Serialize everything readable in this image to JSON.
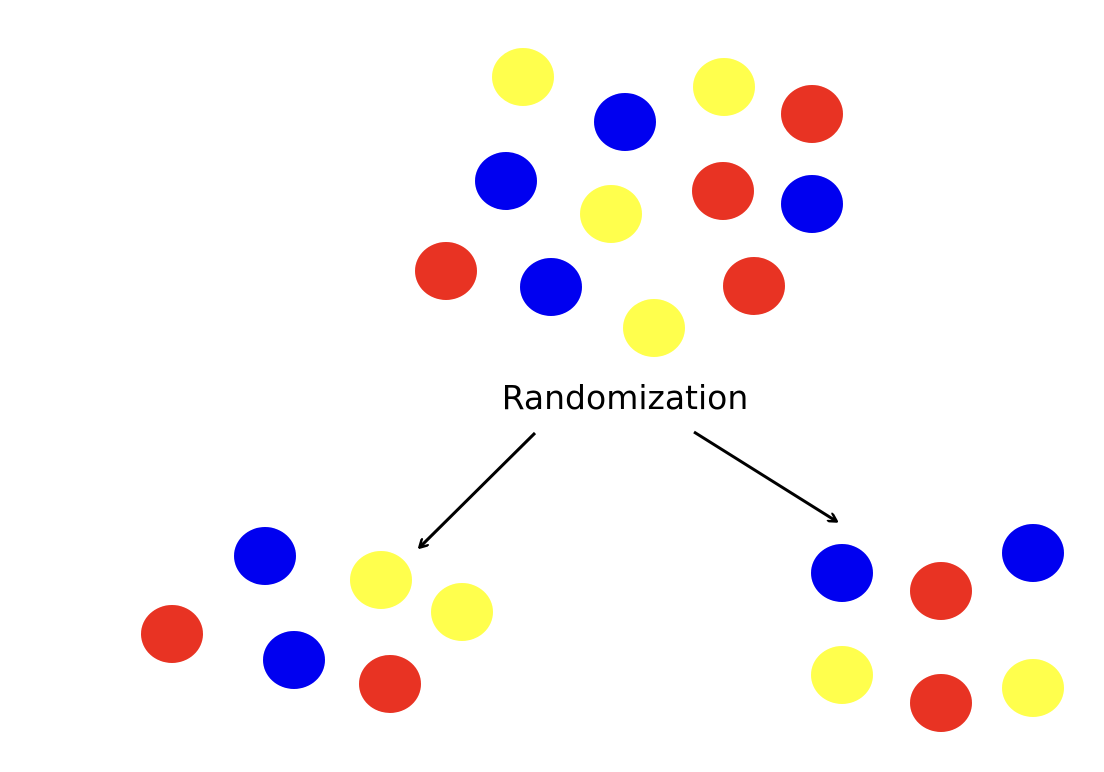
{
  "label": "Randomization",
  "colors": {
    "yellow": "#ffff4d",
    "blue": "#0000f0",
    "red": "#e83323",
    "arrow": "#000000",
    "text": "#000000"
  },
  "groups": {
    "population": [
      "yellow",
      "blue",
      "yellow",
      "red",
      "blue",
      "yellow",
      "red",
      "blue",
      "red",
      "blue",
      "yellow",
      "red"
    ],
    "left_group": [
      "blue",
      "yellow",
      "yellow",
      "red",
      "blue",
      "red"
    ],
    "right_group": [
      "blue",
      "red",
      "blue",
      "yellow",
      "red",
      "yellow"
    ]
  }
}
